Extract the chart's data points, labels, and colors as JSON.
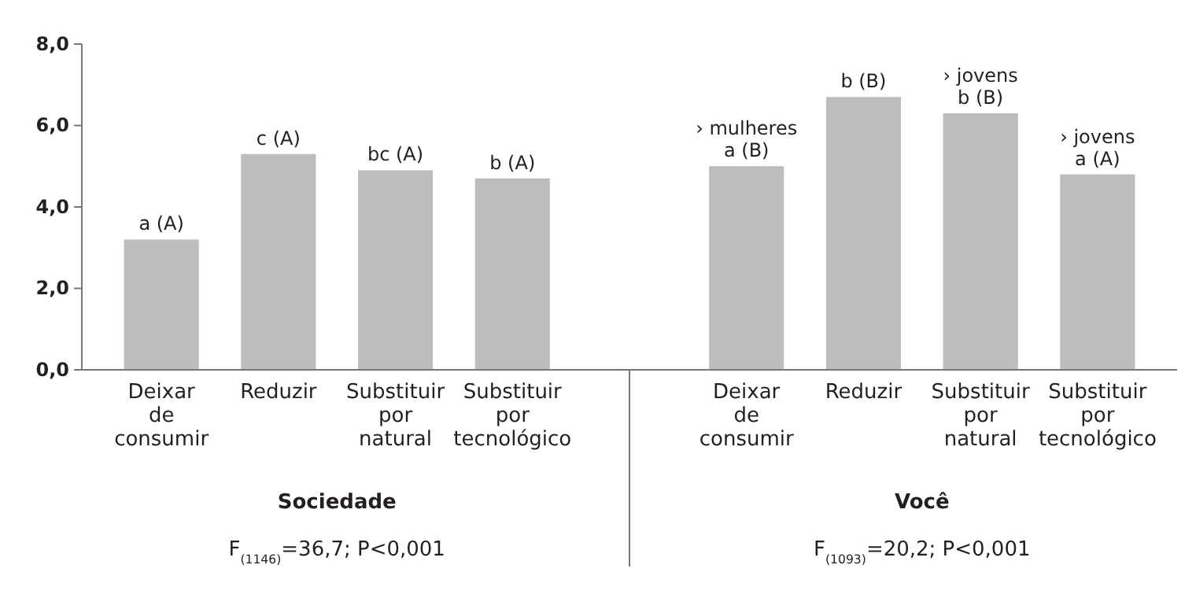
{
  "chart_data": {
    "type": "bar",
    "categories": [
      "Deixar de consumir",
      "Reduzir",
      "Substituir por natural",
      "Substituir por tecnológico",
      null,
      "Deixar de consumir",
      "Reduzir",
      "Substituir por natural",
      "Substituir por tecnológico"
    ],
    "values": [
      3.2,
      5.3,
      4.9,
      4.7,
      null,
      5.0,
      6.7,
      6.3,
      4.8
    ],
    "color": "#bcbdbf",
    "value_labels": [
      "a (A)",
      "c (A)",
      "bc (A)",
      "b (A)",
      null,
      "› mulheres\na (B)",
      "b (B)",
      "› jovens\nb (B)",
      "› jovens\na (A)"
    ],
    "ylim": [
      0,
      8
    ],
    "yticks": [
      {
        "value": 0,
        "label": "0,0"
      },
      {
        "value": 2,
        "label": "2,0"
      },
      {
        "value": 4,
        "label": "4,0"
      },
      {
        "value": 6,
        "label": "6,0"
      },
      {
        "value": 8,
        "label": "8,0"
      }
    ],
    "grid": false,
    "annotations": [
      "Sociedade",
      "F$_{(1146)}$=36,7; P<0,001",
      "Você",
      "F$_{(1093)}$=20,2; P<0,001"
    ]
  }
}
